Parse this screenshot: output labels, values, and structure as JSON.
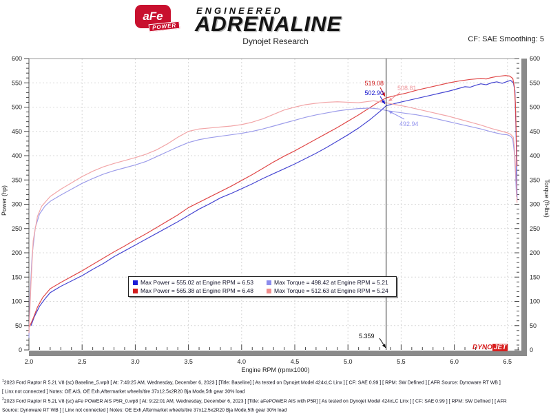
{
  "header": {
    "logo": {
      "badge": "aFe",
      "power": "POWER",
      "line1": "ENGINEERED",
      "line2": "ADRENALINE"
    },
    "title": "Dynojet Research",
    "smoothing": "CF: SAE Smoothing: 5"
  },
  "chart_data": {
    "type": "line",
    "title": "Dynojet Research",
    "grid": "dashed",
    "x_axis": {
      "label": "Engine RPM (rpmx1000)",
      "min": 2.0,
      "max": 6.6,
      "minor_step": 0.1,
      "ticks": [
        2.0,
        2.5,
        3.0,
        3.5,
        4.0,
        4.5,
        5.0,
        5.5,
        6.0,
        6.5
      ]
    },
    "y_left": {
      "label": "Power (hp)",
      "min": 0,
      "max": 600,
      "minor_step": 10,
      "ticks": [
        0,
        50,
        100,
        150,
        200,
        250,
        300,
        350,
        400,
        450,
        500,
        550,
        600
      ]
    },
    "y_right": {
      "label": "Torque (ft-lbs)",
      "min": 0,
      "max": 600,
      "minor_step": 10,
      "ticks": [
        0,
        50,
        100,
        150,
        200,
        250,
        300,
        350,
        400,
        450,
        500,
        550,
        600
      ]
    },
    "cursor": {
      "rpm": 5.359,
      "label": "5.359"
    },
    "series": [
      {
        "name": "power-baseline",
        "color": "#4646d2",
        "max": "Max Power = 555.02 at Engine RPM = 6.53",
        "points": [
          [
            2.02,
            50
          ],
          [
            2.05,
            68
          ],
          [
            2.1,
            90
          ],
          [
            2.15,
            105
          ],
          [
            2.2,
            118
          ],
          [
            2.3,
            131
          ],
          [
            2.4,
            142
          ],
          [
            2.5,
            153
          ],
          [
            2.6,
            166
          ],
          [
            2.7,
            178
          ],
          [
            2.8,
            192
          ],
          [
            2.9,
            204
          ],
          [
            3.0,
            216
          ],
          [
            3.1,
            228
          ],
          [
            3.2,
            240
          ],
          [
            3.3,
            252
          ],
          [
            3.4,
            264
          ],
          [
            3.5,
            277
          ],
          [
            3.6,
            290
          ],
          [
            3.7,
            301
          ],
          [
            3.8,
            313
          ],
          [
            3.9,
            322
          ],
          [
            4.0,
            332
          ],
          [
            4.1,
            342
          ],
          [
            4.2,
            353
          ],
          [
            4.3,
            363
          ],
          [
            4.4,
            373
          ],
          [
            4.5,
            383
          ],
          [
            4.6,
            394
          ],
          [
            4.7,
            405
          ],
          [
            4.8,
            417
          ],
          [
            4.9,
            430
          ],
          [
            5.0,
            443
          ],
          [
            5.1,
            457
          ],
          [
            5.2,
            473
          ],
          [
            5.3,
            491
          ],
          [
            5.36,
            503
          ],
          [
            5.45,
            508
          ],
          [
            5.55,
            513
          ],
          [
            5.65,
            518
          ],
          [
            5.75,
            523
          ],
          [
            5.85,
            528
          ],
          [
            5.95,
            533
          ],
          [
            6.05,
            539
          ],
          [
            6.1,
            542
          ],
          [
            6.15,
            541
          ],
          [
            6.2,
            545
          ],
          [
            6.25,
            548
          ],
          [
            6.3,
            546
          ],
          [
            6.35,
            550
          ],
          [
            6.4,
            552
          ],
          [
            6.45,
            549
          ],
          [
            6.5,
            553
          ],
          [
            6.53,
            555
          ],
          [
            6.555,
            550
          ],
          [
            6.57,
            534
          ],
          [
            6.578,
            470
          ],
          [
            6.585,
            400
          ],
          [
            6.59,
            308
          ]
        ]
      },
      {
        "name": "power-afe",
        "color": "#e04848",
        "max": "Max Power = 565.38 at Engine RPM = 6.48",
        "points": [
          [
            2.0,
            45
          ],
          [
            2.04,
            65
          ],
          [
            2.08,
            88
          ],
          [
            2.13,
            108
          ],
          [
            2.2,
            126
          ],
          [
            2.3,
            139
          ],
          [
            2.4,
            151
          ],
          [
            2.5,
            163
          ],
          [
            2.6,
            176
          ],
          [
            2.7,
            189
          ],
          [
            2.8,
            202
          ],
          [
            2.9,
            214
          ],
          [
            3.0,
            227
          ],
          [
            3.1,
            239
          ],
          [
            3.2,
            252
          ],
          [
            3.3,
            265
          ],
          [
            3.4,
            278
          ],
          [
            3.5,
            293
          ],
          [
            3.6,
            304
          ],
          [
            3.7,
            315
          ],
          [
            3.8,
            326
          ],
          [
            3.9,
            337
          ],
          [
            4.0,
            349
          ],
          [
            4.1,
            361
          ],
          [
            4.2,
            374
          ],
          [
            4.3,
            387
          ],
          [
            4.4,
            399
          ],
          [
            4.5,
            410
          ],
          [
            4.6,
            422
          ],
          [
            4.7,
            434
          ],
          [
            4.8,
            446
          ],
          [
            4.9,
            458
          ],
          [
            5.0,
            471
          ],
          [
            5.1,
            484
          ],
          [
            5.2,
            498
          ],
          [
            5.3,
            512
          ],
          [
            5.36,
            519
          ],
          [
            5.45,
            524
          ],
          [
            5.55,
            529
          ],
          [
            5.65,
            535
          ],
          [
            5.75,
            540
          ],
          [
            5.85,
            545
          ],
          [
            5.95,
            550
          ],
          [
            6.05,
            554
          ],
          [
            6.15,
            557
          ],
          [
            6.25,
            559
          ],
          [
            6.3,
            558
          ],
          [
            6.35,
            561
          ],
          [
            6.4,
            563
          ],
          [
            6.48,
            565
          ],
          [
            6.52,
            564
          ],
          [
            6.55,
            559
          ],
          [
            6.565,
            542
          ],
          [
            6.575,
            505
          ],
          [
            6.583,
            440
          ],
          [
            6.59,
            378
          ]
        ]
      },
      {
        "name": "torque-baseline",
        "color": "#9d9dea",
        "max": "Max Torque = 498.42 at Engine RPM = 5.21",
        "points": [
          [
            2.0,
            25
          ],
          [
            2.01,
            110
          ],
          [
            2.03,
            195
          ],
          [
            2.06,
            252
          ],
          [
            2.1,
            280
          ],
          [
            2.15,
            296
          ],
          [
            2.2,
            306
          ],
          [
            2.3,
            319
          ],
          [
            2.4,
            331
          ],
          [
            2.5,
            343
          ],
          [
            2.6,
            353
          ],
          [
            2.7,
            362
          ],
          [
            2.8,
            369
          ],
          [
            2.9,
            375
          ],
          [
            3.0,
            381
          ],
          [
            3.1,
            388
          ],
          [
            3.2,
            398
          ],
          [
            3.3,
            408
          ],
          [
            3.4,
            418
          ],
          [
            3.5,
            427
          ],
          [
            3.6,
            433
          ],
          [
            3.7,
            437
          ],
          [
            3.8,
            440
          ],
          [
            3.9,
            443
          ],
          [
            4.0,
            446
          ],
          [
            4.1,
            450
          ],
          [
            4.2,
            455
          ],
          [
            4.3,
            461
          ],
          [
            4.4,
            467
          ],
          [
            4.5,
            473
          ],
          [
            4.6,
            479
          ],
          [
            4.7,
            484
          ],
          [
            4.8,
            488
          ],
          [
            4.9,
            492
          ],
          [
            5.0,
            495
          ],
          [
            5.1,
            497
          ],
          [
            5.21,
            498
          ],
          [
            5.3,
            496
          ],
          [
            5.36,
            493
          ],
          [
            5.45,
            490
          ],
          [
            5.55,
            487
          ],
          [
            5.65,
            484
          ],
          [
            5.75,
            480
          ],
          [
            5.85,
            475
          ],
          [
            5.95,
            470
          ],
          [
            6.05,
            465
          ],
          [
            6.15,
            460
          ],
          [
            6.25,
            455
          ],
          [
            6.35,
            449
          ],
          [
            6.45,
            444
          ],
          [
            6.5,
            443
          ],
          [
            6.53,
            440
          ],
          [
            6.55,
            434
          ],
          [
            6.565,
            405
          ],
          [
            6.575,
            365
          ],
          [
            6.585,
            315
          ]
        ]
      },
      {
        "name": "torque-afe",
        "color": "#f2a6a8",
        "max": "Max Torque = 512.63 at Engine RPM = 5.24",
        "points": [
          [
            2.0,
            35
          ],
          [
            2.02,
            140
          ],
          [
            2.04,
            225
          ],
          [
            2.08,
            275
          ],
          [
            2.12,
            296
          ],
          [
            2.2,
            316
          ],
          [
            2.3,
            331
          ],
          [
            2.4,
            344
          ],
          [
            2.5,
            357
          ],
          [
            2.6,
            368
          ],
          [
            2.7,
            377
          ],
          [
            2.8,
            384
          ],
          [
            2.9,
            390
          ],
          [
            3.0,
            396
          ],
          [
            3.1,
            403
          ],
          [
            3.2,
            412
          ],
          [
            3.3,
            424
          ],
          [
            3.4,
            438
          ],
          [
            3.5,
            450
          ],
          [
            3.6,
            455
          ],
          [
            3.7,
            457
          ],
          [
            3.8,
            459
          ],
          [
            3.9,
            461
          ],
          [
            4.0,
            464
          ],
          [
            4.1,
            469
          ],
          [
            4.2,
            476
          ],
          [
            4.3,
            485
          ],
          [
            4.4,
            494
          ],
          [
            4.5,
            500
          ],
          [
            4.6,
            505
          ],
          [
            4.7,
            508
          ],
          [
            4.8,
            510
          ],
          [
            4.9,
            511
          ],
          [
            5.0,
            510
          ],
          [
            5.1,
            509
          ],
          [
            5.24,
            513
          ],
          [
            5.3,
            511
          ],
          [
            5.36,
            509
          ],
          [
            5.45,
            505
          ],
          [
            5.55,
            501
          ],
          [
            5.65,
            496
          ],
          [
            5.75,
            491
          ],
          [
            5.85,
            486
          ],
          [
            5.95,
            481
          ],
          [
            6.05,
            475
          ],
          [
            6.15,
            469
          ],
          [
            6.25,
            463
          ],
          [
            6.35,
            456
          ],
          [
            6.45,
            450
          ],
          [
            6.5,
            447
          ],
          [
            6.53,
            444
          ],
          [
            6.555,
            438
          ],
          [
            6.565,
            418
          ],
          [
            6.575,
            378
          ],
          [
            6.585,
            332
          ],
          [
            6.59,
            303
          ]
        ]
      }
    ],
    "annotations": [
      {
        "text": "519.08",
        "color": "#cc1111"
      },
      {
        "text": "502.90",
        "color": "#1111cc"
      },
      {
        "text": "508.81",
        "color": "#ef9398"
      },
      {
        "text": "492.94",
        "color": "#9393ee"
      },
      {
        "text": "5.359",
        "color": "#111111"
      }
    ]
  },
  "legend": {
    "items": [
      {
        "color": "#1c1cd6",
        "label": "Max Power = 555.02 at Engine RPM = 6.53"
      },
      {
        "color": "#8c8cec",
        "label": "Max Torque = 498.42 at Engine RPM = 5.21"
      },
      {
        "color": "#d21c1c",
        "label": "Max Power = 565.38 at Engine RPM = 6.48"
      },
      {
        "color": "#f08c8c",
        "label": "Max Torque = 512.63 at Engine RPM = 5.24"
      }
    ]
  },
  "dynojet_logo": {
    "part1": "DYNO",
    "part2": "JET"
  },
  "footer": {
    "lines": [
      {
        "sup": "1",
        "text": "2023 Ford Raptor R 5.2L V8 (sc) Baseline_5.wp8 [ At: 7:49:25 AM, Wednesday, December 6, 2023 ] [Title: Baseline]  [ As tested on Dynojet Model 424xLC Linx ] [ CF: SAE 0.99 ] [ RPM: SW Defined ] [ AFR Source: Dynoware RT WB ]"
      },
      {
        "sup": "",
        "text": "[ Linx not connected ] Notes: OE AIS, OE Exh,Aftermarket wheels/tire 37x12.5x2R20 Bja Mode,5th gear 30% load"
      },
      {
        "sup": "2",
        "text": "2023 Ford Raptor R 5.2L V8 (sc) aFe POWER AIS P5R_0.wp8 [ At: 9:22:01 AM, Wednesday, December 6, 2023 ] [Title: aFePOWER AIS with P5R]  [ As tested on Dynojet Model 424xLC Linx ] [ CF: SAE 0.99 ] [ RPM: SW Defined ] [ AFR"
      },
      {
        "sup": "",
        "text": "Source: Dynoware RT WB ] [ Linx not connected ] Notes: OE Exh,Aftermarket wheels/tire 37x12.5x2R20 Bja Mode,5th gear 30% load"
      }
    ]
  }
}
